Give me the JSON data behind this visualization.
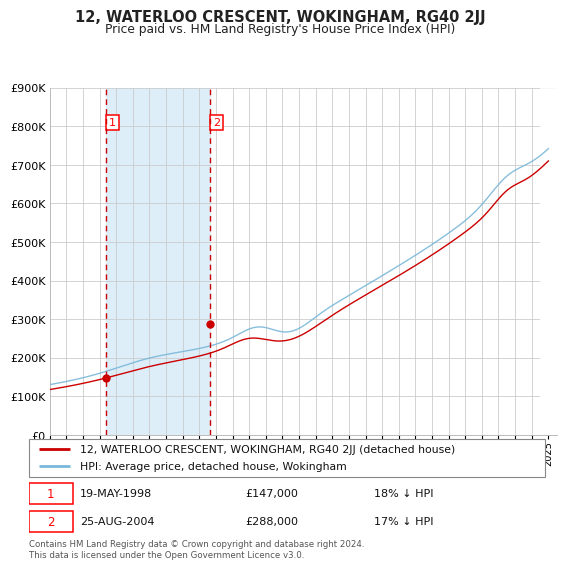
{
  "title": "12, WATERLOO CRESCENT, WOKINGHAM, RG40 2JJ",
  "subtitle": "Price paid vs. HM Land Registry's House Price Index (HPI)",
  "legend_line1": "12, WATERLOO CRESCENT, WOKINGHAM, RG40 2JJ (detached house)",
  "legend_line2": "HPI: Average price, detached house, Wokingham",
  "transaction1_date": "19-MAY-1998",
  "transaction1_price": "£147,000",
  "transaction1_hpi": "18% ↓ HPI",
  "transaction2_date": "25-AUG-2004",
  "transaction2_price": "£288,000",
  "transaction2_hpi": "17% ↓ HPI",
  "footnote": "Contains HM Land Registry data © Crown copyright and database right 2024.\nThis data is licensed under the Open Government Licence v3.0.",
  "hpi_color": "#7ab8d9",
  "price_color": "#cc0000",
  "background_shading_color": "#ddeef8",
  "grid_color": "#cccccc",
  "ylim": [
    0,
    900000
  ],
  "yticks": [
    0,
    100000,
    200000,
    300000,
    400000,
    500000,
    600000,
    700000,
    800000,
    900000
  ],
  "x_start_year": 1995,
  "x_end_year": 2025,
  "transaction1_year": 1998.37,
  "transaction2_year": 2004.64,
  "t1_price_value": 147000,
  "t2_price_value": 288000
}
